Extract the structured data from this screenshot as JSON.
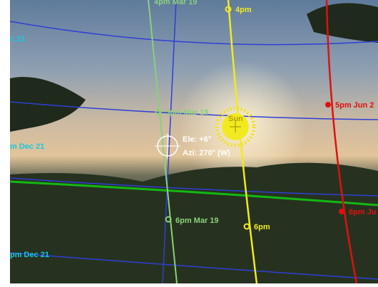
{
  "labels": {
    "top_mar": "4pm Mar 19",
    "top_time": "4pm",
    "dec_top": "c 21",
    "mar_5": "5pm Mar 19",
    "jun_5": "5pm Jun 2",
    "sun": "Sun",
    "elevation": "Ele: +6°",
    "azimuth": "Azi: 270° (W)",
    "dec_5": "m Dec 21",
    "mar_6": "6pm Mar 19",
    "time_6": "6pm",
    "jun_6": "6pm Ju",
    "dec_6": "pm Dec 21"
  }
}
